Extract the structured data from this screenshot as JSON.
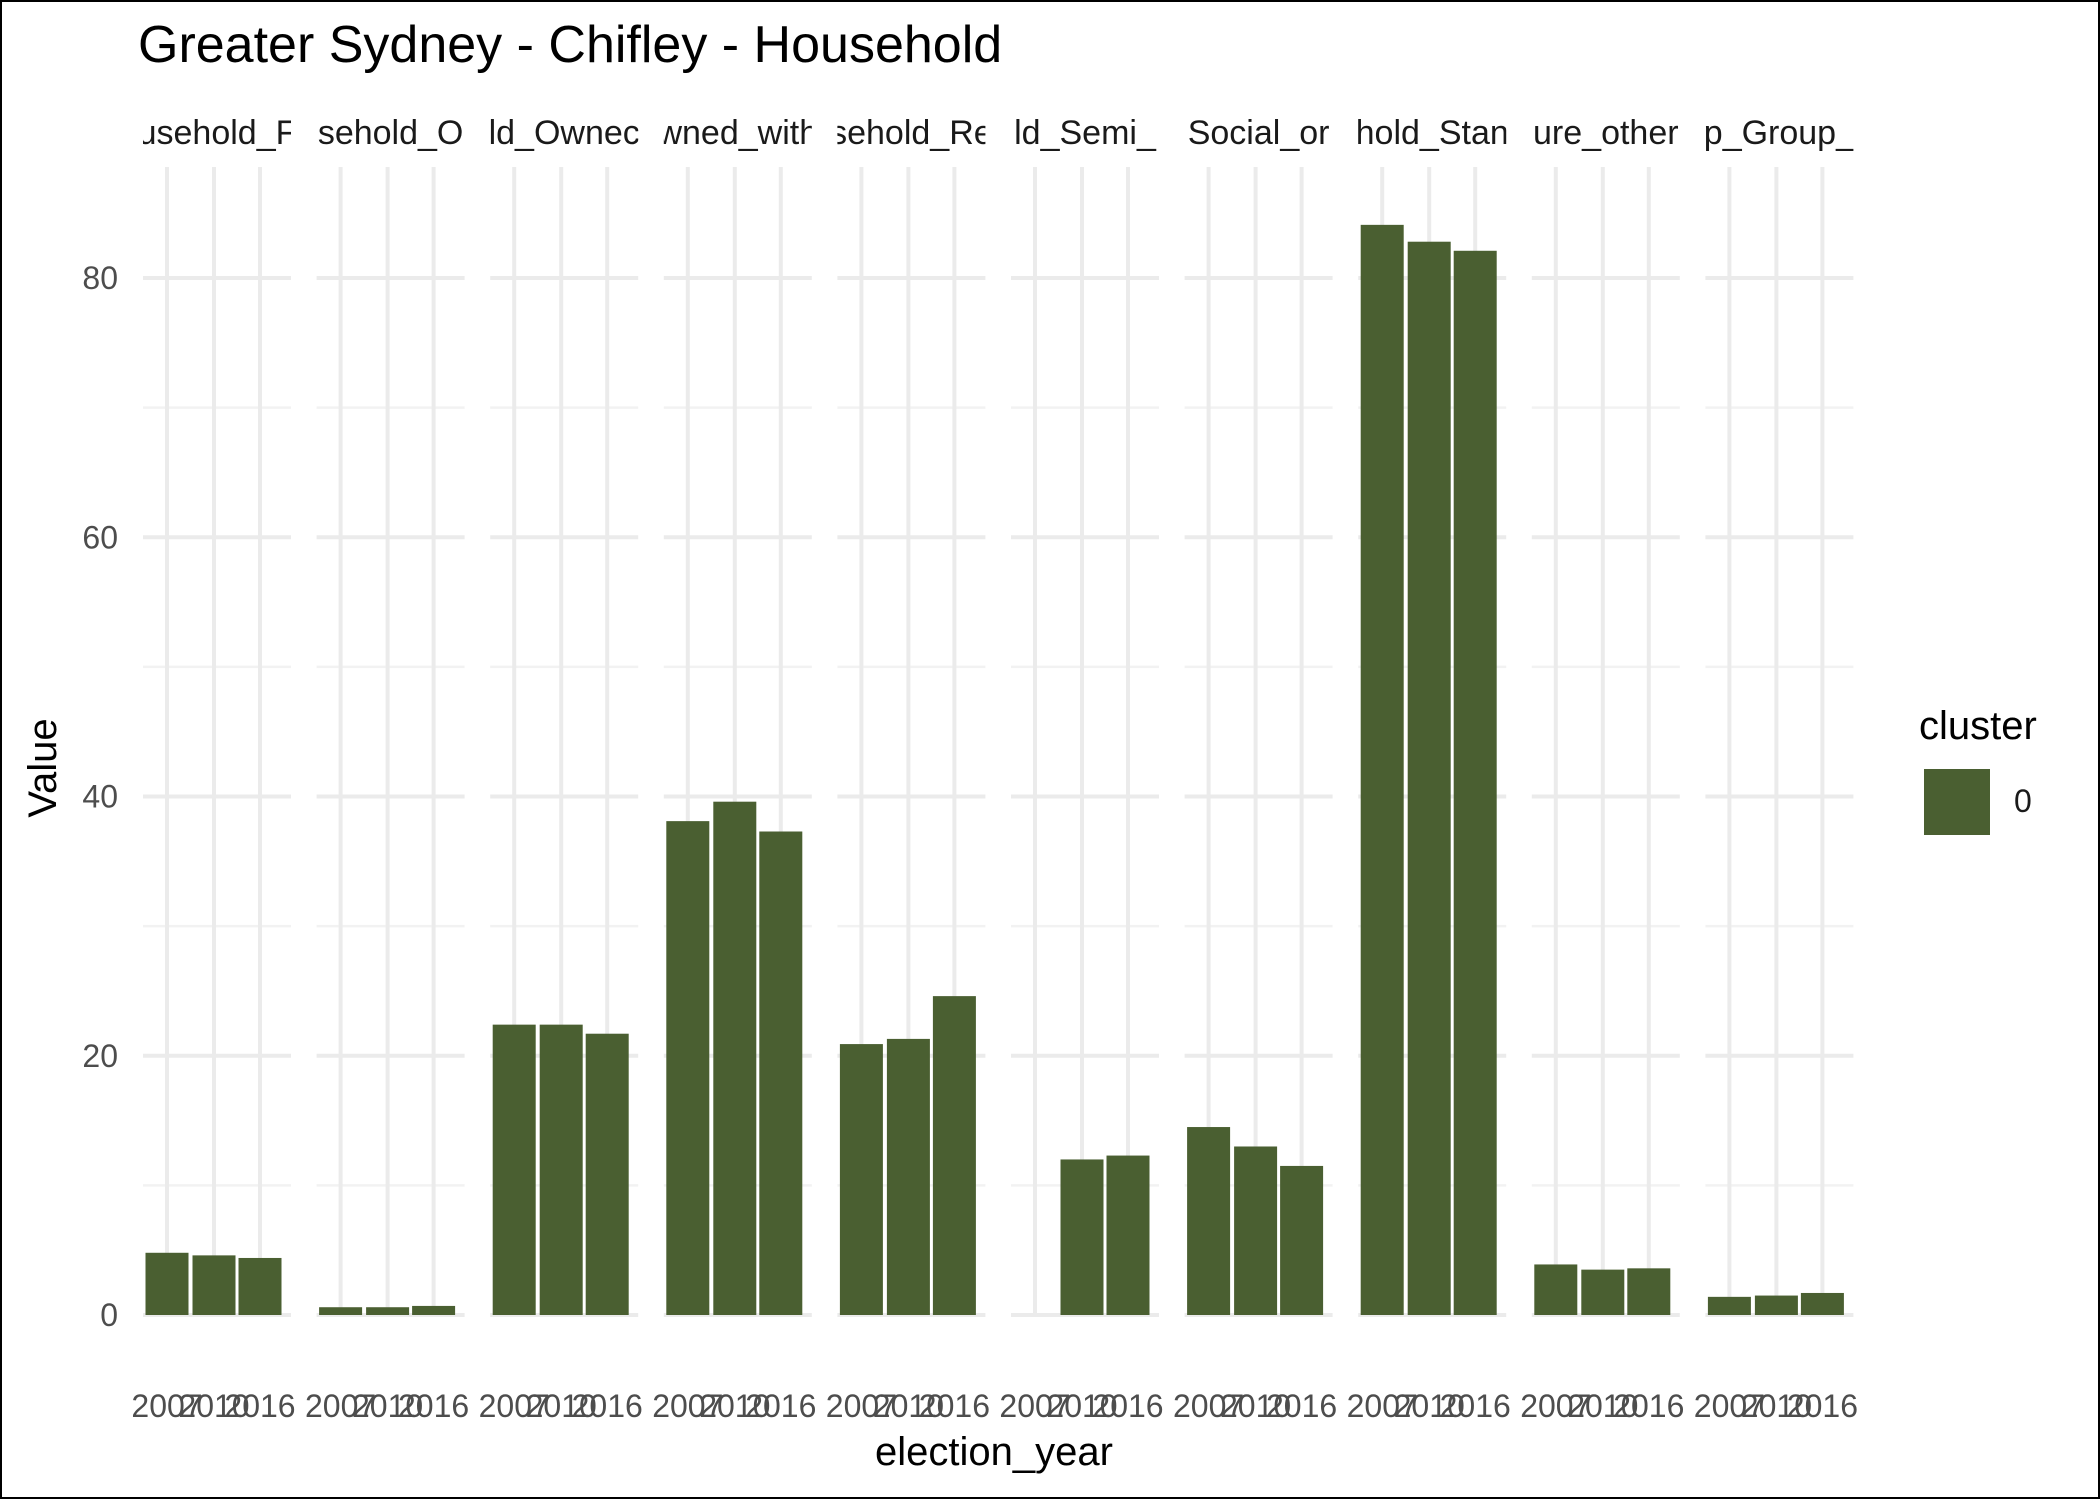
{
  "chart_data": {
    "type": "bar",
    "title": "Greater Sydney - Chifley - Household",
    "xlabel": "election_year",
    "ylabel": "Value",
    "ylim": [
      0,
      88
    ],
    "y_ticks": [
      0,
      20,
      40,
      60,
      80
    ],
    "grid": true,
    "legend": {
      "title": "cluster",
      "position": "right",
      "entries": [
        {
          "label": "0",
          "color": "#4a5f31"
        }
      ]
    },
    "bar_color": "#4a5f31",
    "categories": [
      "2007",
      "2010",
      "2016"
    ],
    "facets": [
      {
        "strip_label": "usehold_F",
        "values": [
          4.8,
          4.6,
          4.4
        ]
      },
      {
        "strip_label": "sehold_O",
        "values": [
          0.6,
          0.6,
          0.7
        ]
      },
      {
        "strip_label": "ld_Ownec",
        "values": [
          22.4,
          22.4,
          21.7
        ]
      },
      {
        "strip_label": "wned_with",
        "values": [
          38.1,
          39.6,
          37.3
        ]
      },
      {
        "strip_label": "sehold_Re",
        "values": [
          20.9,
          21.3,
          24.6
        ]
      },
      {
        "strip_label": "ld_Semi_",
        "values": [
          null,
          12.0,
          12.3
        ]
      },
      {
        "strip_label": "Social_or",
        "values": [
          14.5,
          13.0,
          11.5
        ]
      },
      {
        "strip_label": "hold_Stan",
        "values": [
          84.1,
          82.8,
          82.1
        ]
      },
      {
        "strip_label": "ure_other",
        "values": [
          3.9,
          3.5,
          3.6
        ]
      },
      {
        "strip_label": "p_Group_",
        "values": [
          1.4,
          1.5,
          1.7
        ]
      }
    ]
  }
}
